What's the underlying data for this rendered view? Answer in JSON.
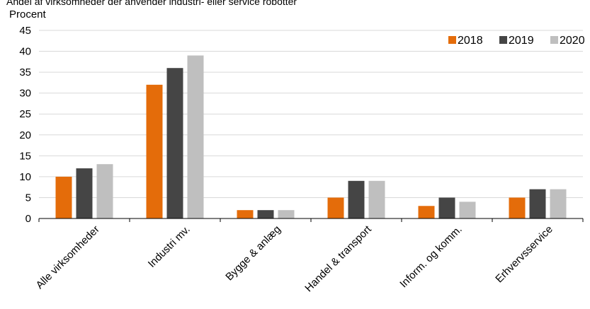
{
  "chart_data": {
    "type": "bar",
    "title": "Andel af virksomheder der anvender industri- eller service robotter",
    "ylabel": "Procent",
    "xlabel": "",
    "ylim": [
      0,
      45
    ],
    "yticks": [
      0,
      5,
      10,
      15,
      20,
      25,
      30,
      35,
      40,
      45
    ],
    "grid": true,
    "legend_position": "top-right",
    "categories": [
      "Alle virksomheder",
      "Industri mv.",
      "Bygge & anlæg",
      "Handel & transport",
      "Inform. og komm.",
      "Erhvervsservice"
    ],
    "series": [
      {
        "name": "2018",
        "color": "#e46c0a",
        "values": [
          10,
          32,
          2,
          5,
          3,
          5
        ]
      },
      {
        "name": "2019",
        "color": "#454545",
        "values": [
          12,
          36,
          2,
          9,
          5,
          7
        ]
      },
      {
        "name": "2020",
        "color": "#bfbfbf",
        "values": [
          13,
          39,
          2,
          9,
          4,
          7
        ]
      }
    ]
  }
}
